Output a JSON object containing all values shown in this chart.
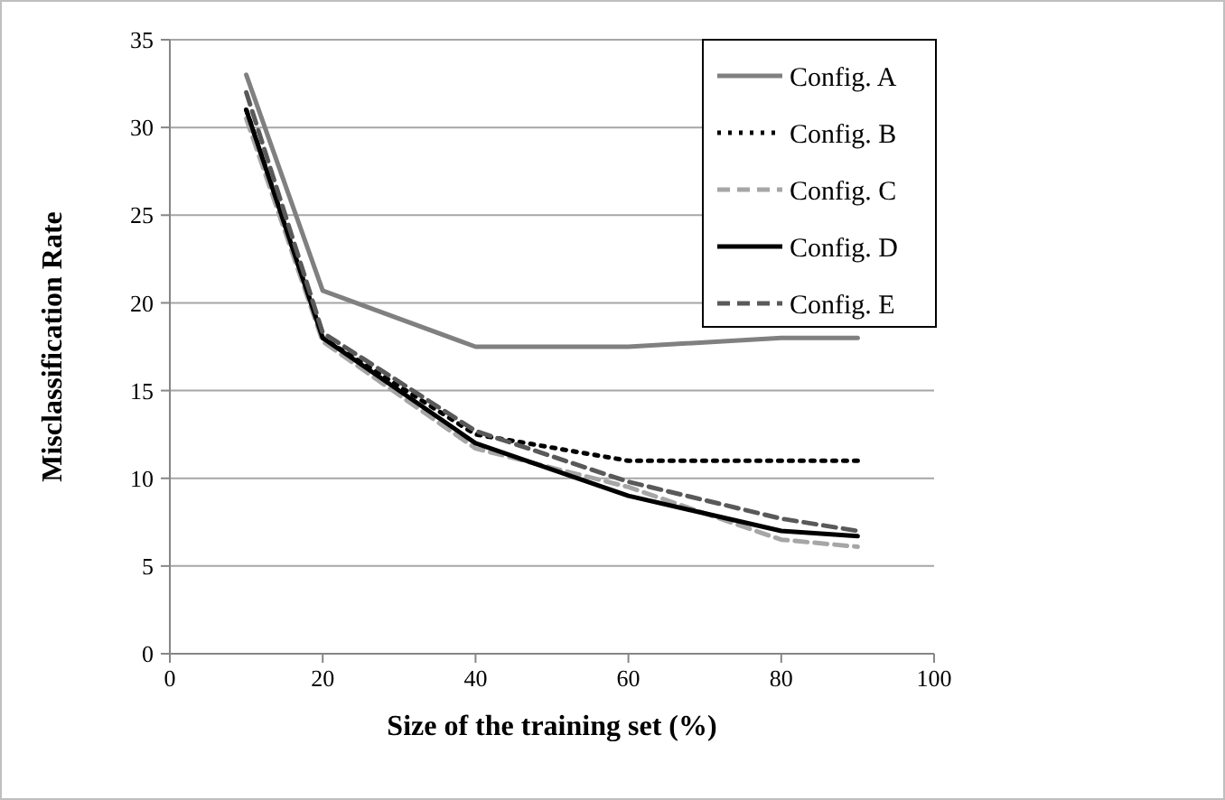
{
  "chart_data": {
    "type": "line",
    "xlabel": "Size of the training set (%)",
    "ylabel": "Misclassification Rate",
    "x": [
      10,
      20,
      40,
      60,
      80,
      90
    ],
    "series": [
      {
        "name": "Config. A",
        "color": "#808080",
        "line_style": "solid",
        "values": [
          33,
          20.7,
          17.5,
          17.5,
          18,
          18
        ]
      },
      {
        "name": "Config. B",
        "color": "#000000",
        "line_style": "dotted",
        "values": [
          31,
          18,
          12.5,
          11,
          11,
          11
        ]
      },
      {
        "name": "Config. C",
        "color": "#a6a6a6",
        "line_style": "dashed",
        "values": [
          30.5,
          17.8,
          11.7,
          9.5,
          6.5,
          6.1
        ]
      },
      {
        "name": "Config. D",
        "color": "#000000",
        "line_style": "solid",
        "values": [
          31,
          18,
          12,
          9,
          7,
          6.7
        ]
      },
      {
        "name": "Config. E",
        "color": "#595959",
        "line_style": "dashed",
        "values": [
          32,
          18.3,
          12.7,
          9.8,
          7.7,
          7
        ]
      }
    ],
    "xlim": [
      0,
      100
    ],
    "xticks": [
      0,
      20,
      40,
      60,
      80,
      100
    ],
    "ylim": [
      0,
      35
    ],
    "yticks": [
      0,
      5,
      10,
      15,
      20,
      25,
      30,
      35
    ],
    "grid": "y",
    "legend": "top right",
    "marker": "none"
  }
}
